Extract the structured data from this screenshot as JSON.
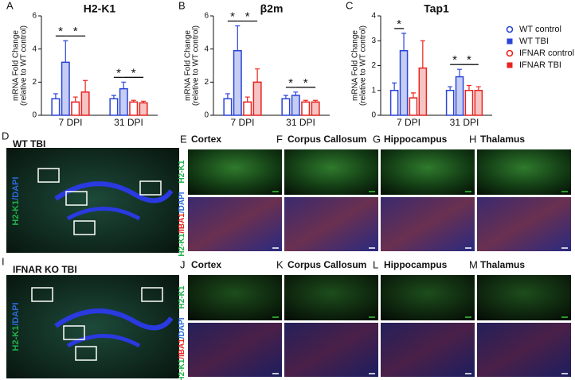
{
  "chart_data": [
    {
      "type": "bar",
      "panel": "A",
      "title": "H2-K1",
      "ylabel": [
        "mRNA Fold Change",
        "(relative to WT control)"
      ],
      "categories": [
        "7 DPI",
        "31 DPI"
      ],
      "ylim": [
        0,
        6
      ],
      "yticks": [
        0,
        2,
        4,
        6
      ],
      "legend": "none",
      "series": [
        {
          "name": "WT control",
          "color": "#2a45d8",
          "bar_fill": "#ffffff",
          "marker": "circle",
          "values": [
            1.0,
            1.0
          ],
          "errors": [
            0.3,
            0.2
          ]
        },
        {
          "name": "WT TBI",
          "color": "#2a45d8",
          "bar_fill": "#c5cdf2",
          "marker": "square",
          "values": [
            3.2,
            1.6
          ],
          "errors": [
            1.3,
            0.4
          ]
        },
        {
          "name": "IFNAR control",
          "color": "#e8231f",
          "bar_fill": "#ffffff",
          "marker": "circle",
          "values": [
            0.8,
            0.8
          ],
          "errors": [
            0.3,
            0.1
          ]
        },
        {
          "name": "IFNAR TBI",
          "color": "#e8231f",
          "bar_fill": "#f6c4c2",
          "marker": "square",
          "values": [
            1.4,
            0.75
          ],
          "errors": [
            0.7,
            0.1
          ]
        }
      ],
      "significance": [
        {
          "category": "7 DPI",
          "from": "WT control",
          "to": "WT TBI",
          "label": "*"
        },
        {
          "category": "7 DPI",
          "from": "WT TBI",
          "to": "IFNAR TBI",
          "label": "*"
        },
        {
          "category": "31 DPI",
          "from": "WT control",
          "to": "WT TBI",
          "label": "*"
        },
        {
          "category": "31 DPI",
          "from": "WT TBI",
          "to": "IFNAR TBI",
          "label": "*"
        }
      ]
    },
    {
      "type": "bar",
      "panel": "B",
      "title": "β2m",
      "ylabel": [
        "mRNA Fold Change",
        "(relative to WT control)"
      ],
      "categories": [
        "7 DPI",
        "31 DPI"
      ],
      "ylim": [
        0,
        6
      ],
      "yticks": [
        0,
        2,
        4,
        6
      ],
      "legend": "none",
      "series": [
        {
          "name": "WT control",
          "color": "#2a45d8",
          "bar_fill": "#ffffff",
          "marker": "circle",
          "values": [
            1.0,
            1.0
          ],
          "errors": [
            0.3,
            0.2
          ]
        },
        {
          "name": "WT TBI",
          "color": "#2a45d8",
          "bar_fill": "#c5cdf2",
          "marker": "square",
          "values": [
            3.9,
            1.2
          ],
          "errors": [
            1.5,
            0.2
          ]
        },
        {
          "name": "IFNAR control",
          "color": "#e8231f",
          "bar_fill": "#ffffff",
          "marker": "circle",
          "values": [
            0.8,
            0.8
          ],
          "errors": [
            0.3,
            0.1
          ]
        },
        {
          "name": "IFNAR TBI",
          "color": "#e8231f",
          "bar_fill": "#f6c4c2",
          "marker": "square",
          "values": [
            2.0,
            0.8
          ],
          "errors": [
            0.8,
            0.1
          ]
        }
      ],
      "significance": [
        {
          "category": "7 DPI",
          "from": "WT control",
          "to": "WT TBI",
          "label": "*"
        },
        {
          "category": "7 DPI",
          "from": "WT TBI",
          "to": "IFNAR TBI",
          "label": "*"
        },
        {
          "category": "31 DPI",
          "from": "WT control",
          "to": "WT TBI",
          "label": "*"
        },
        {
          "category": "31 DPI",
          "from": "WT TBI",
          "to": "IFNAR TBI",
          "label": "*"
        }
      ]
    },
    {
      "type": "bar",
      "panel": "C",
      "title": "Tap1",
      "ylabel": [
        "mRNA Fold Change",
        "(relative to WT control)"
      ],
      "categories": [
        "7 DPI",
        "31 DPI"
      ],
      "ylim": [
        0,
        4
      ],
      "yticks": [
        0,
        1,
        2,
        3,
        4
      ],
      "legend": "outside-right",
      "series": [
        {
          "name": "WT control",
          "color": "#2a45d8",
          "bar_fill": "#ffffff",
          "marker": "circle",
          "values": [
            1.0,
            1.0
          ],
          "errors": [
            0.3,
            0.15
          ]
        },
        {
          "name": "WT TBI",
          "color": "#2a45d8",
          "bar_fill": "#c5cdf2",
          "marker": "square",
          "values": [
            2.6,
            1.55
          ],
          "errors": [
            0.7,
            0.3
          ]
        },
        {
          "name": "IFNAR control",
          "color": "#e8231f",
          "bar_fill": "#ffffff",
          "marker": "circle",
          "values": [
            0.7,
            1.0
          ],
          "errors": [
            0.2,
            0.2
          ]
        },
        {
          "name": "IFNAR TBI",
          "color": "#e8231f",
          "bar_fill": "#f6c4c2",
          "marker": "square",
          "values": [
            1.9,
            1.0
          ],
          "errors": [
            1.1,
            0.15
          ]
        }
      ],
      "significance": [
        {
          "category": "7 DPI",
          "from": "WT control",
          "to": "WT TBI",
          "label": "*"
        },
        {
          "category": "31 DPI",
          "from": "WT control",
          "to": "WT TBI",
          "label": "*"
        },
        {
          "category": "31 DPI",
          "from": "WT TBI",
          "to": "IFNAR TBI",
          "label": "*"
        }
      ]
    }
  ],
  "brain_rows": [
    {
      "letter": "D",
      "title": "WT TBI",
      "stain": [
        {
          "text": "H2-K1",
          "color": "#22b04a"
        },
        {
          "text": "/DAPI",
          "color": "#2a6ad8"
        }
      ],
      "region_letters": [
        "E",
        "F",
        "G",
        "H"
      ]
    },
    {
      "letter": "I",
      "title": "IFNAR KO TBI",
      "stain": [
        {
          "text": "H2-K1",
          "color": "#22b04a"
        },
        {
          "text": "/DAPI",
          "color": "#2a6ad8"
        }
      ],
      "region_letters": [
        "J",
        "K",
        "L",
        "M"
      ]
    }
  ],
  "regions": [
    "Cortex",
    "Corpus Callosum",
    "Hippocampus",
    "Thalamus"
  ],
  "region_stains": [
    [
      {
        "text": "H2-K1",
        "color": "#22b04a"
      }
    ],
    [
      {
        "text": "H2-K1",
        "color": "#22b04a"
      },
      {
        "text": "/IBA1",
        "color": "#e8231f"
      },
      {
        "text": "/DAPI",
        "color": "#2a6ad8"
      }
    ]
  ]
}
